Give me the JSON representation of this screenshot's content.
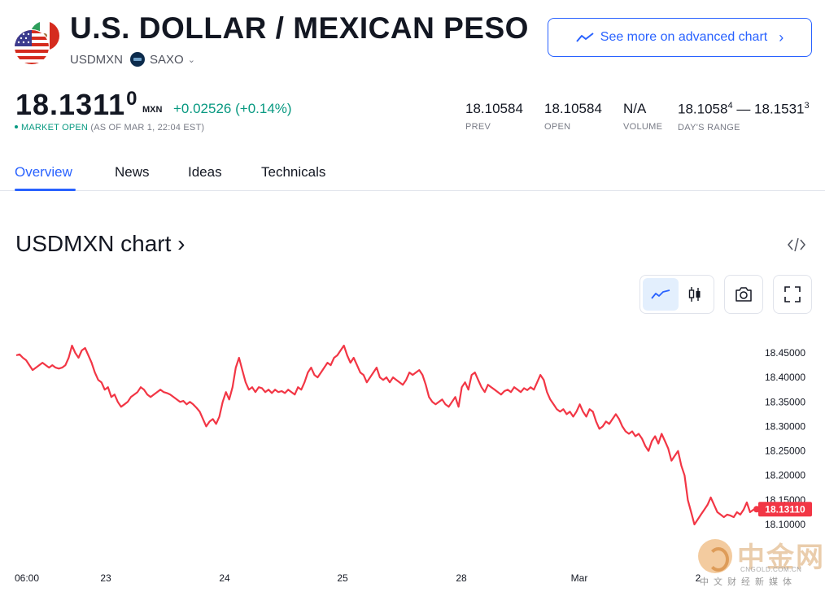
{
  "header": {
    "title": "U.S. DOLLAR / MEXICAN PESO",
    "symbol": "USDMXN",
    "exchange": "SAXO",
    "flag_icon": "usd-mxn-flag-icon",
    "advanced_chart_label": "See more on advanced chart"
  },
  "quote": {
    "price_main": "18.1311",
    "price_sup": "0",
    "currency": "MXN",
    "change": "+0.02526",
    "change_pct": "(+0.14%)",
    "market_status": "MARKET OPEN",
    "as_of": "(AS OF MAR 1, 22:04 EST)"
  },
  "stats": [
    {
      "value": "18.10584",
      "label": "PREV"
    },
    {
      "value": "18.10584",
      "label": "OPEN"
    },
    {
      "value": "N/A",
      "label": "VOLUME"
    },
    {
      "value_low": "18.1058",
      "value_low_sup": "4",
      "dash": "—",
      "value_high": "18.1531",
      "value_high_sup": "3",
      "label": "DAY'S RANGE"
    }
  ],
  "tabs": [
    "Overview",
    "News",
    "Ideas",
    "Technicals"
  ],
  "chart_section": {
    "title": "USDMXN chart ›",
    "embed_icon": "code-embed-icon",
    "tools": [
      "line-chart-icon",
      "candles-icon",
      "camera-icon",
      "fullscreen-icon"
    ]
  },
  "watermark": {
    "text": "中金网",
    "site": "CNGOLD.COM.CN",
    "subtitle": "中文财经新媒体"
  },
  "colors": {
    "accent": "#2962ff",
    "positive": "#089981",
    "line": "#f23645",
    "text": "#131722",
    "muted": "#787b86"
  },
  "chart_data": {
    "type": "line",
    "x_ticks": [
      "06:00",
      "23",
      "24",
      "25",
      "28",
      "Mar",
      "2"
    ],
    "y_ticks": [
      "18.45000",
      "18.40000",
      "18.35000",
      "18.30000",
      "18.25000",
      "18.20000",
      "18.15000",
      "18.10000"
    ],
    "ylim": [
      18.085,
      18.49
    ],
    "last_value": "18.13110",
    "series": [
      {
        "values": [
          18.445,
          18.447,
          18.44,
          18.435,
          18.425,
          18.415,
          18.42,
          18.425,
          18.43,
          18.425,
          18.42,
          18.425,
          18.42,
          18.418,
          18.42,
          18.425,
          18.44,
          18.465,
          18.45,
          18.44,
          18.455,
          18.46,
          18.445,
          18.43,
          18.41,
          18.395,
          18.39,
          18.375,
          18.38,
          18.36,
          18.365,
          18.35,
          18.34,
          18.345,
          18.35,
          18.36,
          18.365,
          18.37,
          18.38,
          18.375,
          18.365,
          18.36,
          18.365,
          18.37,
          18.375,
          18.37,
          18.368,
          18.365,
          18.36,
          18.355,
          18.35,
          18.352,
          18.345,
          18.35,
          18.345,
          18.338,
          18.33,
          18.315,
          18.3,
          18.31,
          18.315,
          18.305,
          18.32,
          18.35,
          18.37,
          18.355,
          18.38,
          18.42,
          18.44,
          18.415,
          18.39,
          18.375,
          18.38,
          18.37,
          18.38,
          18.378,
          18.37,
          18.375,
          18.368,
          18.375,
          18.37,
          18.372,
          18.368,
          18.375,
          18.37,
          18.365,
          18.38,
          18.375,
          18.39,
          18.41,
          18.42,
          18.405,
          18.4,
          18.41,
          18.42,
          18.43,
          18.425,
          18.44,
          18.445,
          18.455,
          18.465,
          18.445,
          18.43,
          18.44,
          18.425,
          18.41,
          18.405,
          18.39,
          18.4,
          18.41,
          18.42,
          18.4,
          18.395,
          18.4,
          18.39,
          18.4,
          18.395,
          18.39,
          18.385,
          18.395,
          18.41,
          18.405,
          18.41,
          18.415,
          18.405,
          18.385,
          18.36,
          18.35,
          18.345,
          18.35,
          18.355,
          18.345,
          18.34,
          18.35,
          18.36,
          18.34,
          18.38,
          18.39,
          18.375,
          18.405,
          18.41,
          18.395,
          18.38,
          18.37,
          18.385,
          18.38,
          18.375,
          18.37,
          18.365,
          18.372,
          18.375,
          18.37,
          18.38,
          18.375,
          18.37,
          18.378,
          18.374,
          18.38,
          18.375,
          18.39,
          18.405,
          18.395,
          18.37,
          18.355,
          18.345,
          18.335,
          18.33,
          18.335,
          18.325,
          18.33,
          18.32,
          18.33,
          18.345,
          18.33,
          18.32,
          18.335,
          18.33,
          18.31,
          18.295,
          18.3,
          18.31,
          18.305,
          18.315,
          18.325,
          18.315,
          18.3,
          18.29,
          18.285,
          18.29,
          18.28,
          18.285,
          18.275,
          18.26,
          18.25,
          18.27,
          18.28,
          18.265,
          18.285,
          18.27,
          18.255,
          18.23,
          18.24,
          18.25,
          18.22,
          18.2,
          18.15,
          18.125,
          18.1,
          18.11,
          18.12,
          18.13,
          18.14,
          18.155,
          18.14,
          18.125,
          18.12,
          18.115,
          18.12,
          18.118,
          18.115,
          18.125,
          18.12,
          18.13,
          18.145,
          18.125,
          18.13,
          18.1311
        ]
      }
    ]
  }
}
